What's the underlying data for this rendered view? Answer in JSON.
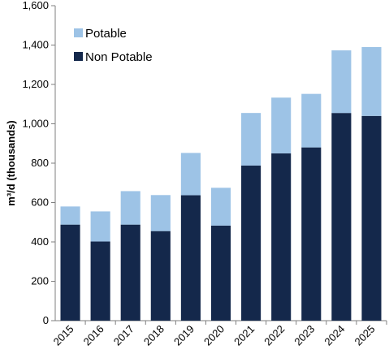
{
  "chart_data": {
    "type": "bar",
    "stacked": true,
    "categories": [
      "2015",
      "2016",
      "2017",
      "2018",
      "2019",
      "2020",
      "2021",
      "2022",
      "2023",
      "2024",
      "2025"
    ],
    "series": [
      {
        "name": "Non Potable",
        "color": "#14284b",
        "values": [
          488,
          402,
          488,
          455,
          637,
          483,
          788,
          850,
          880,
          1055,
          1040
        ]
      },
      {
        "name": "Potable",
        "color": "#9dc3e6",
        "values": [
          92,
          153,
          170,
          183,
          215,
          192,
          267,
          283,
          272,
          318,
          350
        ]
      }
    ],
    "ylabel": "m³/d (thousands)",
    "ylim": [
      0,
      1600
    ],
    "yticks": [
      0,
      200,
      400,
      600,
      800,
      1000,
      1200,
      1400,
      1600
    ],
    "ytick_labels": [
      "0",
      "200",
      "400",
      "600",
      "800",
      "1,000",
      "1,200",
      "1,400",
      "1,600"
    ],
    "legend": {
      "position": "top-left",
      "entries": [
        "Potable",
        "Non Potable"
      ]
    },
    "grid": false
  }
}
